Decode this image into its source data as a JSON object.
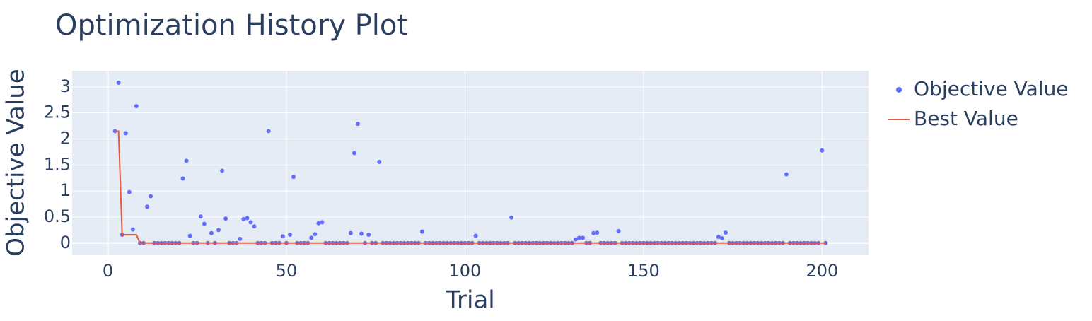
{
  "chart_data": {
    "type": "scatter",
    "title": "Optimization History Plot",
    "x_label": "Trial",
    "y_label": "Objective Value",
    "x": [
      2,
      3,
      4,
      5,
      6,
      7,
      8,
      9,
      10,
      11,
      12,
      13,
      14,
      15,
      16,
      17,
      18,
      19,
      20,
      21,
      22,
      23,
      24,
      25,
      26,
      27,
      28,
      29,
      30,
      31,
      32,
      33,
      34,
      35,
      36,
      37,
      38,
      39,
      40,
      41,
      42,
      43,
      44,
      45,
      46,
      47,
      48,
      49,
      50,
      51,
      52,
      53,
      54,
      55,
      56,
      57,
      58,
      59,
      60,
      61,
      62,
      63,
      64,
      65,
      66,
      67,
      68,
      69,
      70,
      71,
      72,
      73,
      74,
      75,
      76,
      77,
      78,
      79,
      80,
      81,
      82,
      83,
      84,
      85,
      86,
      87,
      88,
      89,
      90,
      91,
      92,
      93,
      94,
      95,
      96,
      97,
      98,
      99,
      100,
      101,
      102,
      103,
      104,
      105,
      106,
      107,
      108,
      109,
      110,
      111,
      112,
      113,
      114,
      115,
      116,
      117,
      118,
      119,
      120,
      121,
      122,
      123,
      124,
      125,
      126,
      127,
      128,
      129,
      130,
      131,
      132,
      133,
      134,
      135,
      136,
      137,
      138,
      139,
      140,
      141,
      142,
      143,
      144,
      145,
      146,
      147,
      148,
      149,
      150,
      151,
      152,
      153,
      154,
      155,
      156,
      157,
      158,
      159,
      160,
      161,
      162,
      163,
      164,
      165,
      166,
      167,
      168,
      169,
      170,
      171,
      172,
      173,
      174,
      175,
      176,
      177,
      178,
      179,
      180,
      181,
      182,
      183,
      184,
      185,
      186,
      187,
      188,
      189,
      190,
      191,
      192,
      193,
      194,
      195,
      196,
      197,
      198,
      199,
      200,
      201
    ],
    "series": [
      {
        "name": "Objective Value",
        "color": "#636efa",
        "mode": "markers",
        "values": [
          2.15,
          3.08,
          0.16,
          2.11,
          0.98,
          0.26,
          2.63,
          0,
          0,
          0.7,
          0.9,
          0,
          0,
          0,
          0,
          0,
          0,
          0,
          0,
          1.24,
          1.58,
          0.14,
          0,
          0,
          0.51,
          0.37,
          0,
          0.19,
          0,
          0.25,
          1.39,
          0.47,
          0,
          0,
          0,
          0.08,
          0.46,
          0.48,
          0.4,
          0.32,
          0,
          0,
          0,
          2.15,
          0,
          0,
          0,
          0.13,
          0,
          0.16,
          1.27,
          0,
          0,
          0,
          0,
          0.1,
          0.17,
          0.38,
          0.4,
          0,
          0,
          0,
          0,
          0,
          0,
          0,
          0.19,
          1.73,
          2.29,
          0.18,
          0,
          0.16,
          0,
          0,
          1.56,
          0,
          0,
          0,
          0,
          0,
          0,
          0,
          0,
          0,
          0,
          0,
          0.22,
          0,
          0,
          0,
          0,
          0,
          0,
          0,
          0,
          0,
          0,
          0,
          0,
          0,
          0,
          0.14,
          0,
          0,
          0,
          0,
          0,
          0,
          0,
          0,
          0,
          0.49,
          0,
          0,
          0,
          0,
          0,
          0,
          0,
          0,
          0,
          0,
          0,
          0,
          0,
          0,
          0,
          0,
          0,
          0.07,
          0.1,
          0.1,
          0,
          0,
          0.19,
          0.2,
          0,
          0,
          0,
          0,
          0,
          0.23,
          0,
          0,
          0,
          0,
          0,
          0,
          0,
          0,
          0,
          0,
          0,
          0,
          0,
          0,
          0,
          0,
          0,
          0,
          0,
          0,
          0,
          0,
          0,
          0,
          0,
          0,
          0,
          0.12,
          0.09,
          0.2,
          0,
          0,
          0,
          0,
          0,
          0,
          0,
          0,
          0,
          0,
          0,
          0,
          0,
          0,
          0,
          0,
          1.32,
          0,
          0,
          0,
          0,
          0,
          0,
          0,
          0,
          0,
          1.78,
          0
        ]
      },
      {
        "name": "Best Value",
        "color": "#ef553b",
        "mode": "lines",
        "values": [
          2.15,
          2.15,
          0.16,
          0.16,
          0.16,
          0.16,
          0.16,
          0,
          0,
          0,
          0,
          0,
          0,
          0,
          0,
          0,
          0,
          0,
          0,
          0,
          0,
          0,
          0,
          0,
          0,
          0,
          0,
          0,
          0,
          0,
          0,
          0,
          0,
          0,
          0,
          0,
          0,
          0,
          0,
          0,
          0,
          0,
          0,
          0,
          0,
          0,
          0,
          0,
          0,
          0,
          0,
          0,
          0,
          0,
          0,
          0,
          0,
          0,
          0,
          0,
          0,
          0,
          0,
          0,
          0,
          0,
          0,
          0,
          0,
          0,
          0,
          0,
          0,
          0,
          0,
          0,
          0,
          0,
          0,
          0,
          0,
          0,
          0,
          0,
          0,
          0,
          0,
          0,
          0,
          0,
          0,
          0,
          0,
          0,
          0,
          0,
          0,
          0,
          0,
          0,
          0,
          0,
          0,
          0,
          0,
          0,
          0,
          0,
          0,
          0,
          0,
          0,
          0,
          0,
          0,
          0,
          0,
          0,
          0,
          0,
          0,
          0,
          0,
          0,
          0,
          0,
          0,
          0,
          0,
          0,
          0,
          0,
          0,
          0,
          0,
          0,
          0,
          0,
          0,
          0,
          0,
          0,
          0,
          0,
          0,
          0,
          0,
          0,
          0,
          0,
          0,
          0,
          0,
          0,
          0,
          0,
          0,
          0,
          0,
          0,
          0,
          0,
          0,
          0,
          0,
          0,
          0,
          0,
          0,
          0,
          0,
          0,
          0,
          0,
          0,
          0,
          0,
          0,
          0,
          0,
          0,
          0,
          0,
          0,
          0,
          0,
          0,
          0,
          0,
          0,
          0,
          0,
          0,
          0,
          0,
          0,
          0,
          0,
          0,
          0
        ]
      }
    ],
    "xlim": [
      -10,
      213
    ],
    "ylim": [
      -0.22,
      3.31
    ],
    "xticks": [
      0,
      50,
      100,
      150,
      200
    ],
    "yticks": [
      0,
      0.5,
      1,
      1.5,
      2,
      2.5,
      3
    ],
    "grid": true,
    "legend": "right"
  }
}
